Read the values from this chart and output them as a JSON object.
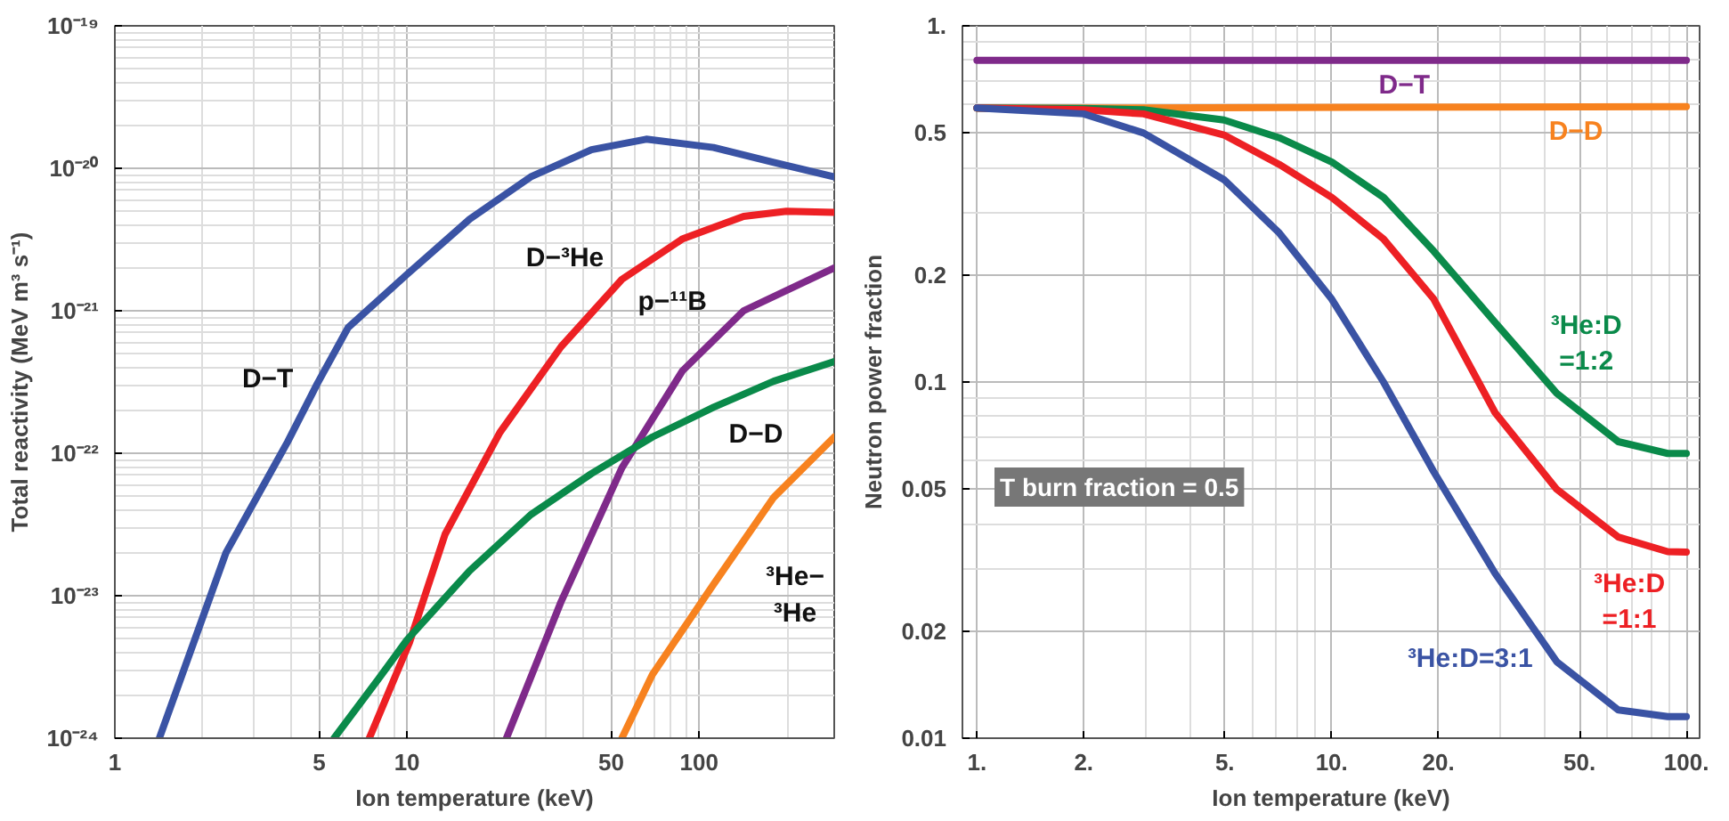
{
  "chart_data": [
    {
      "type": "line",
      "xlabel": "Ion temperature (keV)",
      "ylabel": "Total reactivity (MeV m³ s⁻¹)",
      "log": "xy",
      "grid": true,
      "xlim": [
        1,
        290
      ],
      "ylim": [
        1e-24,
        1e-19
      ],
      "xticks": [
        1,
        5,
        10,
        50,
        100
      ],
      "yticks": [
        {
          "value": 1e-24,
          "label": "10⁻²⁴"
        },
        {
          "value": 1e-23,
          "label": "10⁻²³"
        },
        {
          "value": 1e-22,
          "label": "10⁻²²"
        },
        {
          "value": 1e-21,
          "label": "10⁻²¹"
        },
        {
          "value": 1e-20,
          "label": "10⁻²⁰"
        },
        {
          "value": 1e-19,
          "label": "10⁻¹⁹"
        }
      ],
      "series": [
        {
          "name": "D−T",
          "color": "#3a53a4",
          "x": [
            1.42,
            2.4,
            3.9,
            4.94,
            6.28,
            10,
            16.4,
            26.5,
            42.8,
            65.9,
            112,
            180,
            290
          ],
          "values": [
            1e-24,
            2e-23,
            1.2e-22,
            3.1e-22,
            7.6e-22,
            1.8e-21,
            4.4e-21,
            8.7e-21,
            1.35e-20,
            1.6e-20,
            1.4e-20,
            1.1e-20,
            8.7e-21
          ]
        },
        {
          "name": "D−³He",
          "color": "#ed2024",
          "x": [
            7.43,
            10.2,
            13.5,
            20.8,
            33.7,
            54.4,
            87.8,
            142,
            199,
            290
          ],
          "values": [
            1e-24,
            4.7e-24,
            2.7e-23,
            1.4e-22,
            5.6e-22,
            1.66e-21,
            3.2e-21,
            4.6e-21,
            5e-21,
            4.9e-21
          ]
        },
        {
          "name": "p−¹¹B",
          "color": "#7f2a8a",
          "x": [
            21.9,
            33.7,
            54.4,
            87.8,
            142,
            290
          ],
          "values": [
            1e-24,
            9.1e-24,
            7.9e-23,
            3.8e-22,
            1e-21,
            2e-21
          ]
        },
        {
          "name": "D−D",
          "color": "#0a8a4a",
          "x": [
            5.63,
            7.98,
            10,
            16.4,
            26.5,
            42.8,
            69.2,
            112,
            180,
            290
          ],
          "values": [
            1e-24,
            2.6e-24,
            4.9e-24,
            1.5e-23,
            3.7e-23,
            7.2e-23,
            1.3e-22,
            2.1e-22,
            3.2e-22,
            4.4e-22
          ]
        },
        {
          "name": "³He−\n³He",
          "color": "#f7821f",
          "x": [
            54.4,
            69.2,
            112,
            180,
            290
          ],
          "values": [
            1e-24,
            2.8e-24,
            1.2e-23,
            4.9e-23,
            1.3e-22
          ]
        }
      ]
    },
    {
      "type": "line",
      "xlabel": "Ion temperature (keV)",
      "ylabel": "Neutron power fraction",
      "log": "xy",
      "grid": true,
      "xlim": [
        0.91,
        109
      ],
      "ylim": [
        0.01,
        1
      ],
      "xticks": [
        {
          "value": 1,
          "label": "1."
        },
        {
          "value": 2,
          "label": "2."
        },
        {
          "value": 5,
          "label": "5."
        },
        {
          "value": 10,
          "label": "10."
        },
        {
          "value": 20,
          "label": "20."
        },
        {
          "value": 50,
          "label": "50."
        },
        {
          "value": 100,
          "label": "100."
        }
      ],
      "yticks": [
        0.01,
        0.02,
        0.05,
        0.1,
        0.2,
        0.5,
        {
          "value": 1,
          "label": "1."
        }
      ],
      "series": [
        {
          "name": "D−T",
          "color": "#7f2a8a",
          "x": [
            1,
            100
          ],
          "values": [
            0.8,
            0.8
          ]
        },
        {
          "name": "D−D",
          "color": "#f7821f",
          "x": [
            1,
            100
          ],
          "values": [
            0.587,
            0.593
          ]
        },
        {
          "name": "³He:D\n=1:2",
          "color": "#0a8a4a",
          "x": [
            1,
            2,
            2.95,
            4.97,
            7.12,
            10,
            14.0,
            19.4,
            28.9,
            43.1,
            64.3,
            88.6,
            100
          ],
          "values": [
            0.588,
            0.586,
            0.581,
            0.544,
            0.485,
            0.415,
            0.33,
            0.233,
            0.147,
            0.093,
            0.068,
            0.063,
            0.063
          ]
        },
        {
          "name": "³He:D\n=1:1",
          "color": "#ed2024",
          "x": [
            1,
            2,
            2.95,
            4.97,
            7.12,
            10,
            14.0,
            19.4,
            28.9,
            43.1,
            64.3,
            88.6,
            100
          ],
          "values": [
            0.588,
            0.581,
            0.566,
            0.494,
            0.408,
            0.33,
            0.252,
            0.171,
            0.082,
            0.05,
            0.0367,
            0.0334,
            0.0333
          ]
        },
        {
          "name": "³He:D=3:1",
          "color": "#3a53a4",
          "x": [
            1,
            2,
            2.95,
            4.97,
            7.12,
            10,
            14.0,
            19.4,
            28.9,
            43.1,
            64.3,
            88.6,
            100
          ],
          "values": [
            0.588,
            0.566,
            0.5,
            0.37,
            0.262,
            0.171,
            0.1,
            0.056,
            0.029,
            0.0164,
            0.012,
            0.0115,
            0.0115
          ]
        }
      ],
      "annotations": [
        "T burn fraction = 0.5"
      ]
    }
  ]
}
